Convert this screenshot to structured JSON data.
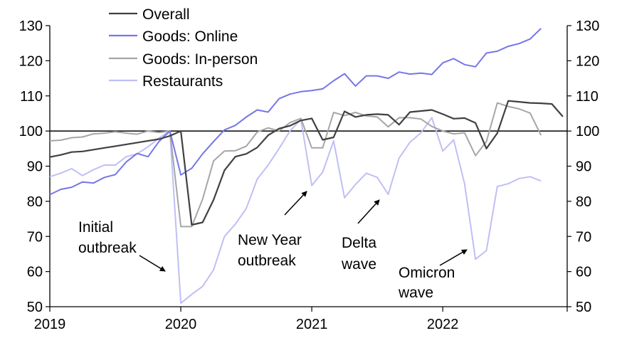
{
  "chart_data": {
    "type": "line",
    "title": "",
    "xlabel": "",
    "ylabel": "",
    "ylim": [
      50,
      130
    ],
    "yticks": [
      50,
      60,
      70,
      80,
      90,
      100,
      110,
      120,
      130
    ],
    "xlim": [
      2019.0,
      2022.95
    ],
    "xticks": [
      2019,
      2020,
      2021,
      2022
    ],
    "xtick_labels": [
      "2019",
      "2020",
      "2021",
      "2022"
    ],
    "reference_line": 100,
    "legend_position": "top-left",
    "x_start": 2019.0,
    "x_step_months": 1,
    "series": [
      {
        "name": "Overall",
        "color": "#404040",
        "values": [
          92.6,
          93.2,
          94.0,
          94.2,
          94.7,
          95.2,
          95.7,
          96.2,
          96.7,
          97.2,
          97.7,
          98.6,
          100.0,
          73.3,
          74.0,
          80.4,
          88.8,
          92.7,
          93.5,
          95.3,
          98.8,
          100.7,
          101.5,
          103.0,
          103.6,
          97.5,
          98.2,
          105.6,
          104.0,
          104.6,
          104.8,
          104.6,
          101.8,
          105.4,
          105.7,
          106.0,
          104.8,
          103.5,
          103.7,
          102.3,
          95.0,
          99.4,
          108.6,
          108.3,
          108.0,
          107.9,
          107.7,
          104.1
        ]
      },
      {
        "name": "Goods: Online",
        "color": "#7676e8",
        "values": [
          81.9,
          83.4,
          84.0,
          85.5,
          85.2,
          86.8,
          87.6,
          91.2,
          93.6,
          92.7,
          97.0,
          100.0,
          87.5,
          89.4,
          93.5,
          97.0,
          100.3,
          101.6,
          104.0,
          106.0,
          105.4,
          109.2,
          110.5,
          111.2,
          111.5,
          112.0,
          114.3,
          116.3,
          112.8,
          115.7,
          115.7,
          115.0,
          116.8,
          116.2,
          116.5,
          116.1,
          119.4,
          120.6,
          118.9,
          118.3,
          122.2,
          122.7,
          124.1,
          124.9,
          126.2,
          129.2
        ]
      },
      {
        "name": "Goods: In-person",
        "color": "#a6a6a6",
        "values": [
          97.2,
          97.4,
          98.1,
          98.3,
          99.2,
          99.4,
          99.8,
          99.4,
          99.1,
          100.0,
          99.6,
          100.0,
          72.8,
          72.8,
          80.6,
          91.5,
          94.3,
          94.4,
          95.7,
          99.7,
          100.9,
          100.0,
          102.4,
          103.6,
          95.2,
          95.2,
          105.3,
          104.4,
          105.3,
          104.3,
          104.0,
          101.2,
          103.8,
          103.8,
          103.4,
          101.3,
          100.0,
          99.2,
          99.5,
          93.0,
          97.0,
          108.0,
          107.0,
          106.3,
          105.1,
          98.8
        ]
      },
      {
        "name": "Restaurants",
        "color": "#bfbff5",
        "values": [
          87.0,
          88.0,
          89.3,
          87.3,
          89.0,
          90.3,
          90.3,
          92.7,
          93.5,
          95.5,
          98.0,
          100.0,
          51.0,
          53.5,
          55.8,
          60.5,
          70.0,
          73.5,
          78.0,
          86.3,
          90.3,
          95.0,
          100.0,
          103.3,
          84.5,
          88.3,
          97.2,
          81.0,
          84.8,
          88.0,
          86.8,
          82.0,
          92.3,
          96.8,
          99.5,
          103.8,
          94.3,
          97.5,
          85.0,
          63.5,
          66.0,
          84.2,
          85.0,
          86.5,
          87.0,
          85.8
        ]
      }
    ],
    "series_x_offsets": [
      0,
      0,
      0,
      0
    ],
    "annotations": [
      {
        "lines": [
          "Initial",
          "outbreak"
        ]
      },
      {
        "lines": [
          "New Year",
          "outbreak"
        ]
      },
      {
        "lines": [
          "Delta",
          "wave"
        ]
      },
      {
        "lines": [
          "Omicron",
          "wave"
        ]
      }
    ]
  }
}
